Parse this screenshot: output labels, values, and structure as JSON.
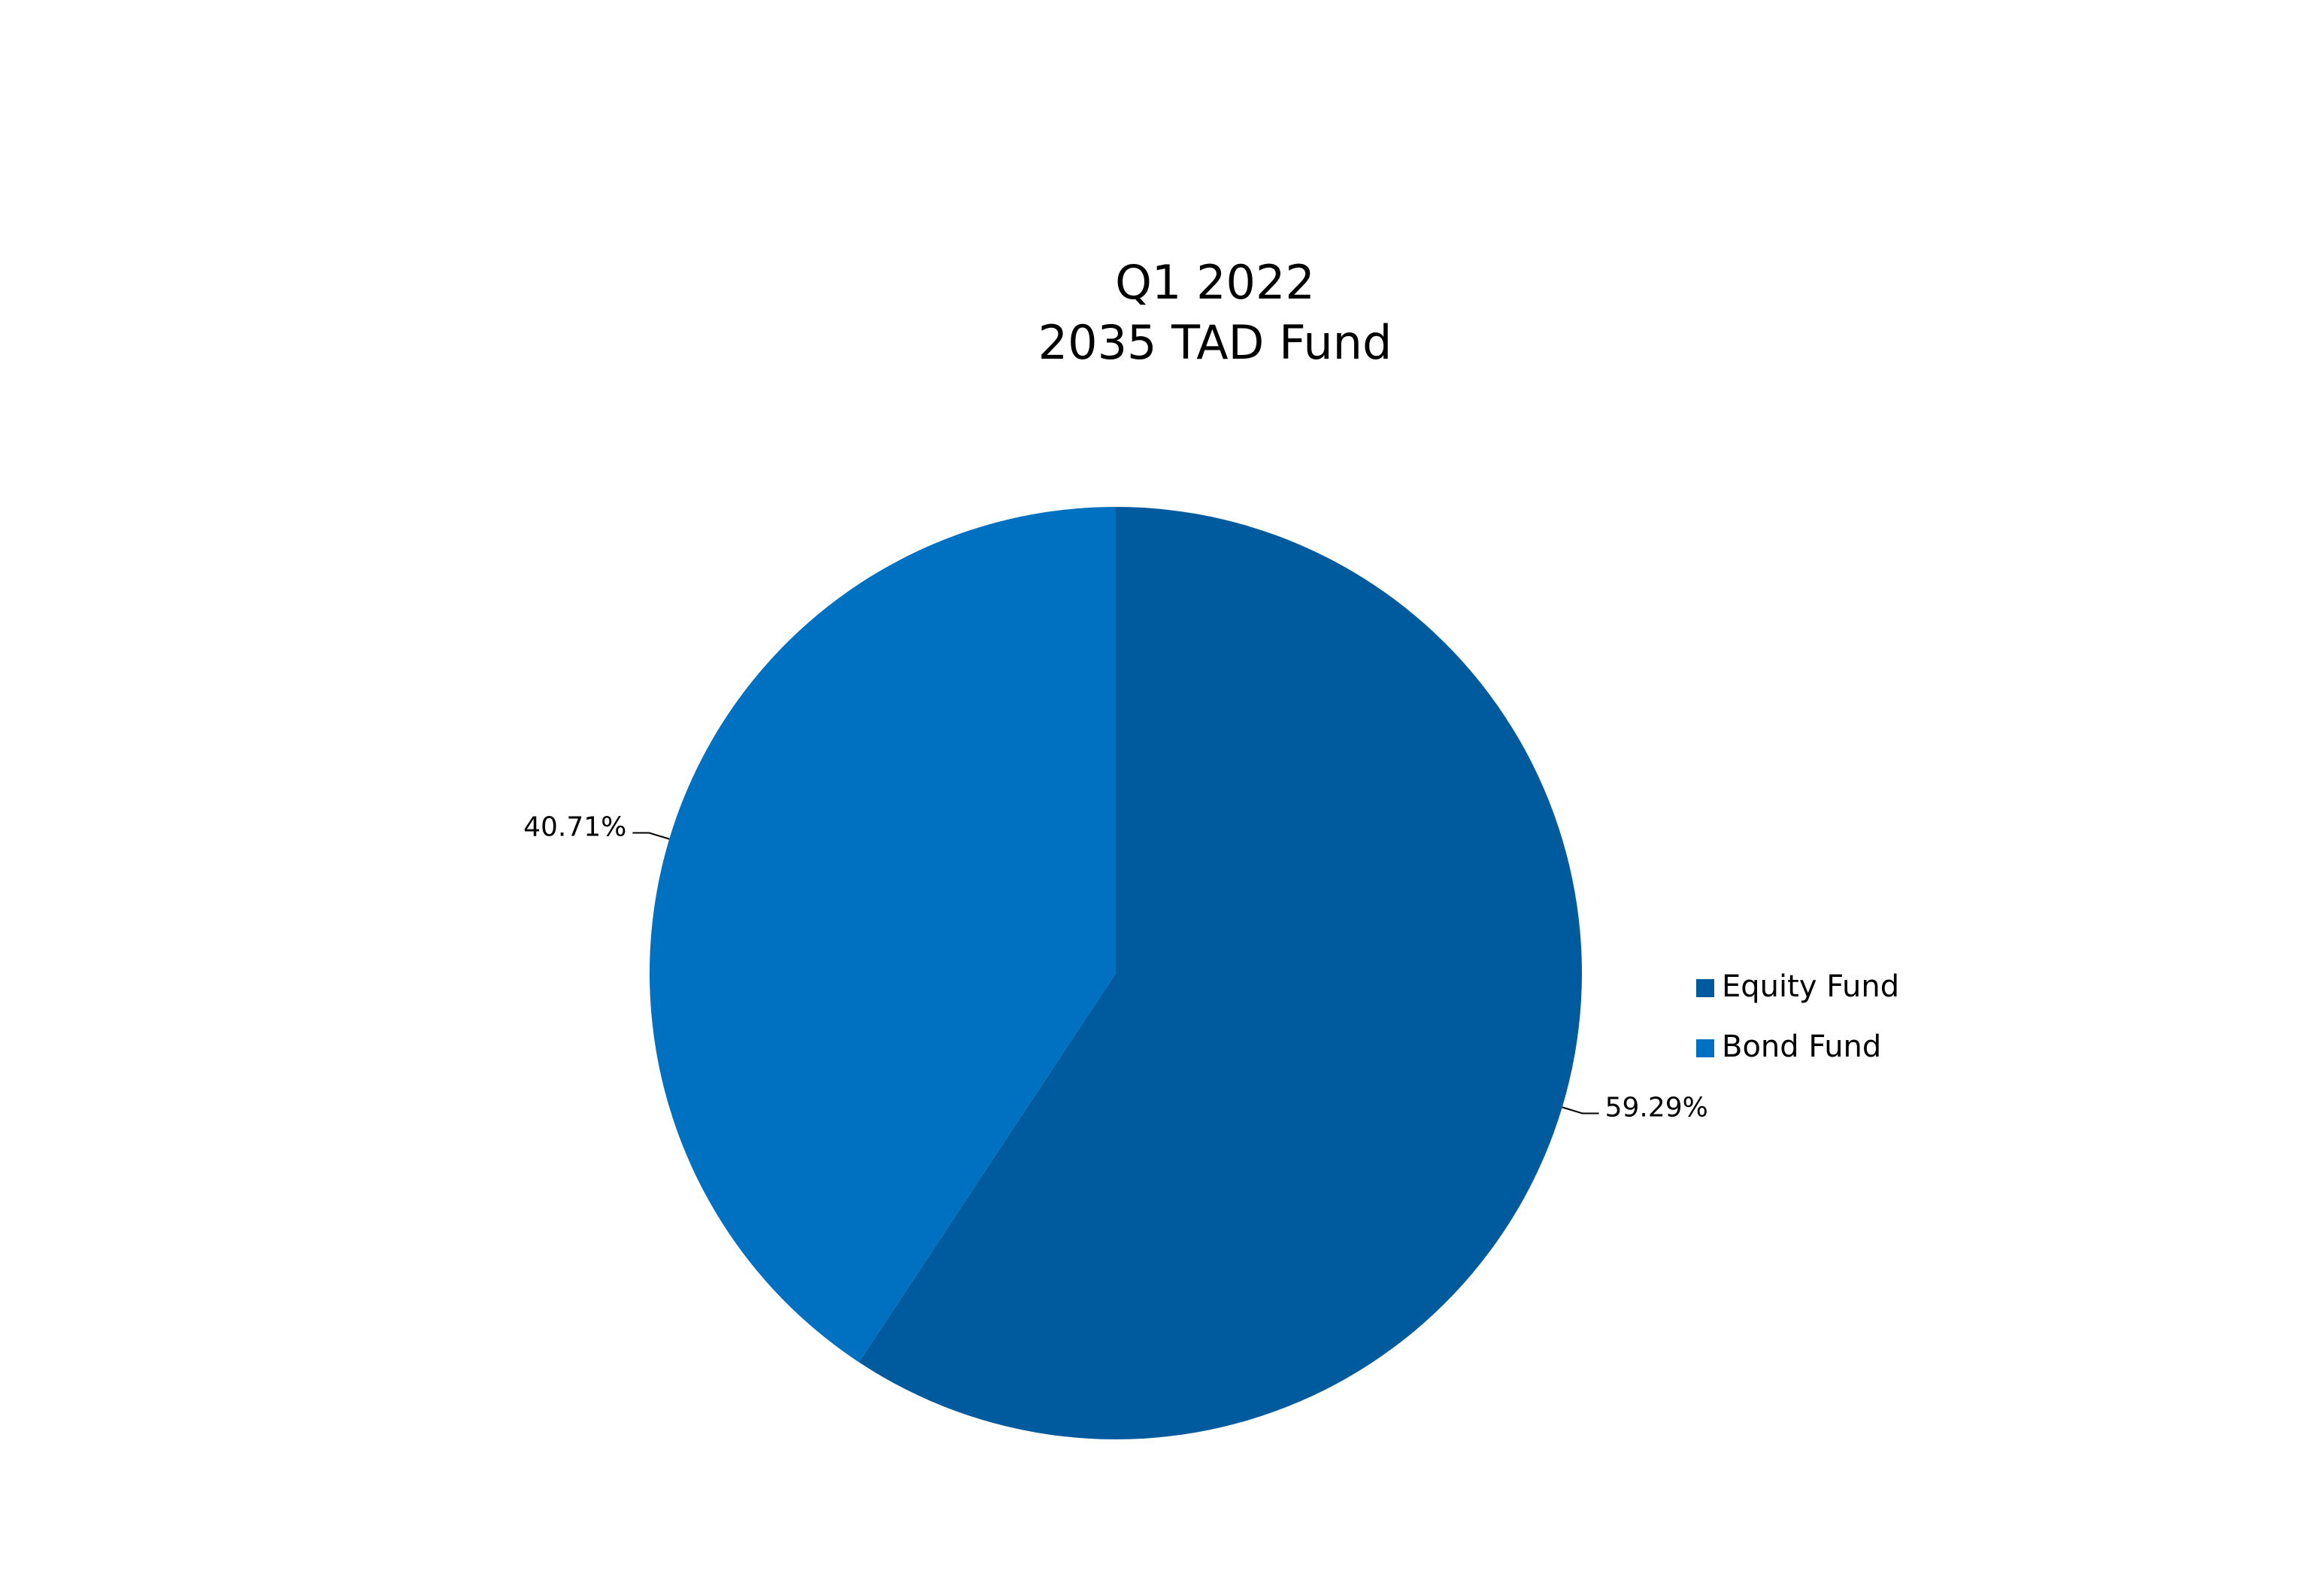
{
  "chart_data": {
    "type": "pie",
    "title": "Q1 2022",
    "subtitle": "2035 TAD Fund",
    "categories": [
      "Equity Fund",
      "Bond Fund"
    ],
    "values": [
      59.29,
      40.71
    ],
    "value_labels": [
      "59.29%",
      "40.71%"
    ],
    "colors": [
      "#005a9e",
      "#0070c0"
    ],
    "legend": "right"
  }
}
